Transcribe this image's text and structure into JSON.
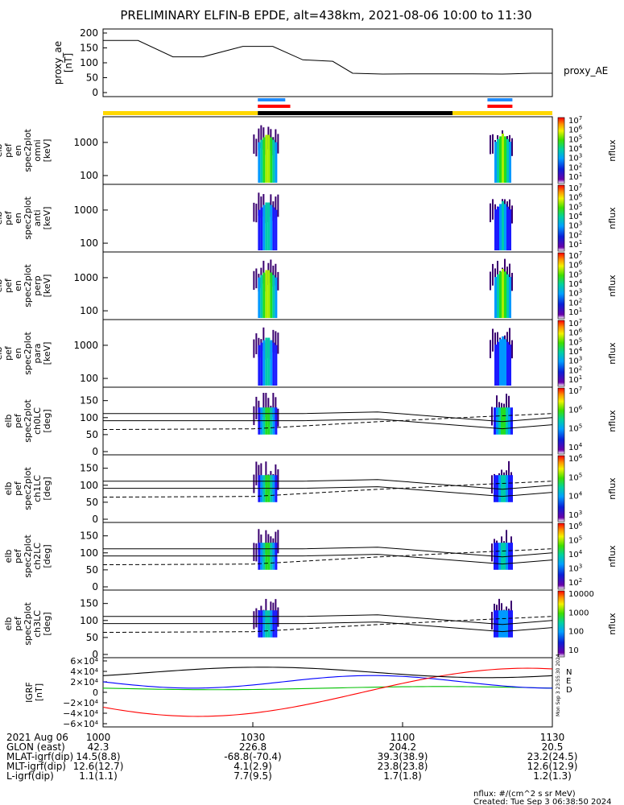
{
  "title": "PRELIMINARY ELFIN-B EPDE, alt=438km, 2021-08-06 10:00 to 11:30",
  "chart_data": [
    {
      "id": "proxy_ae",
      "type": "line",
      "ylabel_lines": [
        "proxy_ae",
        "[nT]"
      ],
      "yticks": [
        "200",
        "150",
        "100",
        "50",
        "0"
      ],
      "ylim": [
        0,
        200
      ],
      "legend": "proxy_AE",
      "series": [
        {
          "name": "proxy_AE",
          "x_min": [
            0,
            7,
            14,
            20,
            28,
            34,
            40,
            46,
            50,
            56,
            62,
            68,
            74,
            80,
            86,
            90
          ],
          "values": [
            175,
            175,
            120,
            120,
            155,
            155,
            110,
            105,
            65,
            62,
            63,
            63,
            63,
            62,
            65,
            65
          ]
        }
      ]
    },
    {
      "id": "ephemeris-bars",
      "type": "bar",
      "segments": {
        "blue_top": [
          [
            31,
            36.5
          ]
        ],
        "blue_top2": [
          [
            77,
            82
          ]
        ],
        "red": [
          [
            31,
            37.5
          ],
          [
            77,
            82
          ]
        ],
        "yellow": [
          [
            0,
            31
          ],
          [
            70,
            90
          ]
        ],
        "black": [
          [
            31,
            70
          ]
        ]
      },
      "colors": {
        "blue": "#1e8bff",
        "red": "#ff0000",
        "yellow": "#ffd700",
        "black": "#000000"
      }
    },
    {
      "id": "omni",
      "type": "heatmap",
      "ylabel_lines": [
        "elb",
        "pef",
        "en",
        "spec2plot",
        "omni",
        "[keV]"
      ],
      "yticks": [
        "1000",
        "100"
      ],
      "cbar_ticks": [
        "10^7",
        "10^6",
        "10^5",
        "10^4",
        "10^3",
        "10^2",
        "10^1"
      ],
      "cbar_label": "nflux"
    },
    {
      "id": "anti",
      "type": "heatmap",
      "ylabel_lines": [
        "elb",
        "pef",
        "en",
        "spec2plot",
        "anti",
        "[keV]"
      ],
      "yticks": [
        "1000",
        "100"
      ],
      "cbar_ticks": [
        "10^7",
        "10^6",
        "10^5",
        "10^4",
        "10^3",
        "10^2",
        "10^1"
      ],
      "cbar_label": "nflux"
    },
    {
      "id": "perp",
      "type": "heatmap",
      "ylabel_lines": [
        "elb",
        "pef",
        "en",
        "spec2plot",
        "perp",
        "[keV]"
      ],
      "yticks": [
        "1000",
        "100"
      ],
      "cbar_ticks": [
        "10^7",
        "10^6",
        "10^5",
        "10^4",
        "10^3",
        "10^2",
        "10^1"
      ],
      "cbar_label": "nflux"
    },
    {
      "id": "para",
      "type": "heatmap",
      "ylabel_lines": [
        "elb",
        "pef",
        "en",
        "spec2plot",
        "para",
        "[keV]"
      ],
      "yticks": [
        "1000",
        "100"
      ],
      "cbar_ticks": [
        "10^7",
        "10^6",
        "10^5",
        "10^4",
        "10^3",
        "10^2",
        "10^1"
      ],
      "cbar_label": "nflux"
    },
    {
      "id": "ch0LC",
      "type": "heatmap",
      "ylabel_lines": [
        "elb",
        "pef",
        "spec2plot",
        "ch0LC",
        "[deg]"
      ],
      "yticks": [
        "150",
        "100",
        "50",
        "0"
      ],
      "cbar_ticks": [
        "10^7",
        "10^6",
        "10^5",
        "10^4"
      ],
      "cbar_label": "nflux"
    },
    {
      "id": "ch1LC",
      "type": "heatmap",
      "ylabel_lines": [
        "elb",
        "pef",
        "spec2plot",
        "ch1LC",
        "[deg]"
      ],
      "yticks": [
        "150",
        "100",
        "50",
        "0"
      ],
      "cbar_ticks": [
        "10^6",
        "10^5",
        "10^4",
        "10^3"
      ],
      "cbar_label": "nflux"
    },
    {
      "id": "ch2LC",
      "type": "heatmap",
      "ylabel_lines": [
        "elb",
        "pef",
        "spec2plot",
        "ch2LC",
        "[deg]"
      ],
      "yticks": [
        "150",
        "100",
        "50",
        "0"
      ],
      "cbar_ticks": [
        "10^6",
        "10^5",
        "10^4",
        "10^3",
        "10^2"
      ],
      "cbar_label": "nflux"
    },
    {
      "id": "ch3LC",
      "type": "heatmap",
      "ylabel_lines": [
        "elb",
        "pef",
        "spec2plot",
        "ch3LC",
        "[deg]"
      ],
      "yticks": [
        "150",
        "100",
        "50",
        "0"
      ],
      "cbar_ticks": [
        "10000",
        "1000",
        "100",
        "10"
      ],
      "cbar_label": "nflux"
    },
    {
      "id": "igrf",
      "type": "line",
      "ylabel_lines": [
        "IGRF",
        "[nT]"
      ],
      "yticks": [
        "6×10⁴",
        "4×10⁴",
        "2×10⁴",
        "0",
        "−2×10⁴",
        "−4×10⁴",
        "−6×10⁴"
      ],
      "ylim": [
        -60000,
        60000
      ],
      "legend": [
        "N",
        "E",
        "D"
      ],
      "series": [
        {
          "name": "N",
          "color": "#0000ff"
        },
        {
          "name": "E",
          "color": "#00c000"
        },
        {
          "name": "D",
          "color": "#ff0000"
        },
        {
          "name": "F",
          "color": "#000000"
        }
      ],
      "side_note": "Mon Sep  3 23:55:30 2024"
    }
  ],
  "xaxis": {
    "ticks": [
      "1000",
      "1030",
      "1100",
      "1130"
    ],
    "rows": [
      {
        "label": "2021 Aug 06",
        "values": [
          "1000",
          "1030",
          "1100",
          "1130"
        ]
      },
      {
        "label": "GLON (east)",
        "values": [
          "42.3",
          "226.8",
          "204.2",
          "20.5"
        ]
      },
      {
        "label": "MLAT-igrf(dip)",
        "values": [
          "14.5(8.8)",
          "-68.8(-70.4)",
          "39.3(38.9)",
          "23.2(24.5)"
        ]
      },
      {
        "label": "MLT-igrf(dip)",
        "values": [
          "12.6(12.7)",
          "4.1(2.9)",
          "23.8(23.8)",
          "12.6(12.9)"
        ]
      },
      {
        "label": "L-igrf(dip)",
        "values": [
          "1.1(1.1)",
          "7.7(9.5)",
          "1.7(1.8)",
          "1.2(1.3)"
        ]
      }
    ]
  },
  "footer": {
    "units": "nflux: #/(cm^2 s sr MeV)",
    "created": "Created: Tue Sep  3 06:38:50 2024"
  }
}
